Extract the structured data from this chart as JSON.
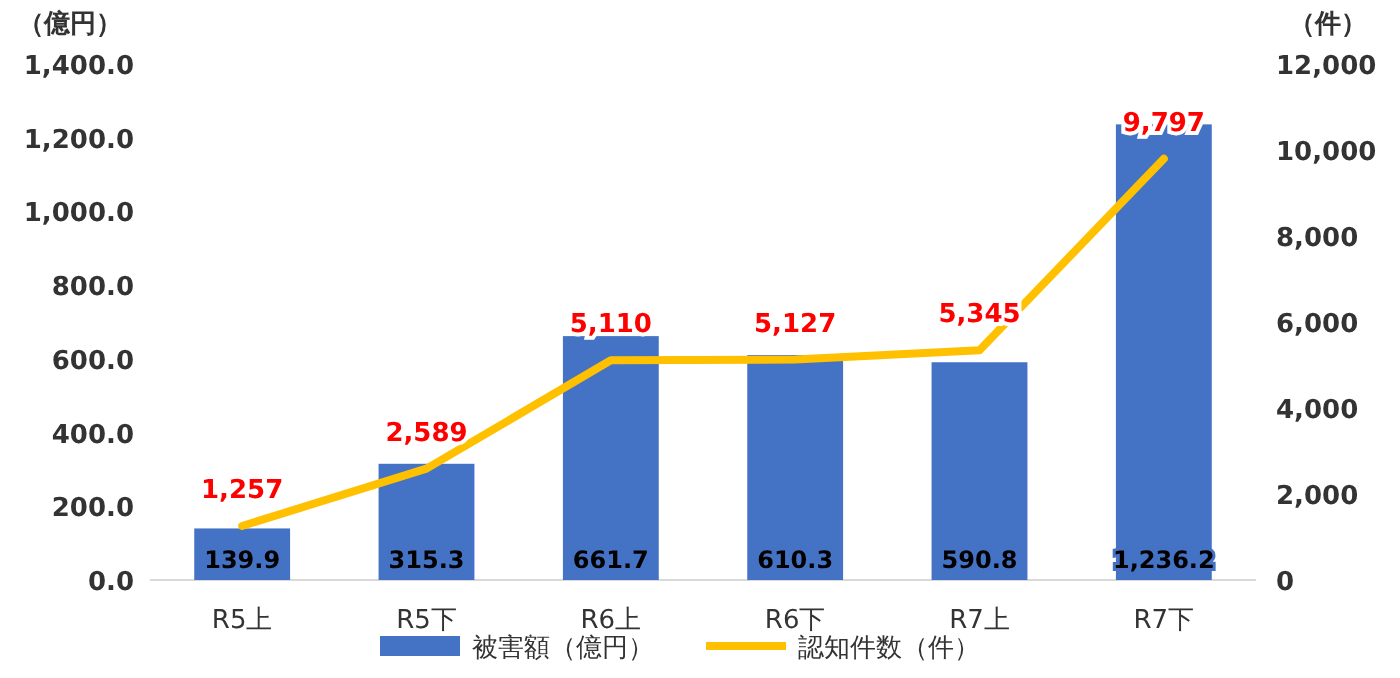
{
  "chart_data": {
    "type": "bar",
    "categories": [
      "R5上",
      "R5下",
      "R6上",
      "R6下",
      "R7上",
      "R7下"
    ],
    "ylabel": "（億円）",
    "y2label": "（件）",
    "ylim": [
      0,
      1400
    ],
    "yticks": [
      {
        "value": 0,
        "label": "0.0"
      },
      {
        "value": 200,
        "label": "200.0"
      },
      {
        "value": 400,
        "label": "400.0"
      },
      {
        "value": 600,
        "label": "600.0"
      },
      {
        "value": 800,
        "label": "800.0"
      },
      {
        "value": 1000,
        "label": "1,000.0"
      },
      {
        "value": 1200,
        "label": "1,200.0"
      },
      {
        "value": 1400,
        "label": "1,400.0"
      }
    ],
    "y2lim": [
      0,
      12000
    ],
    "y2ticks": [
      0,
      {
        "value": 2000,
        "label": "2,000"
      },
      {
        "value": 4000,
        "label": "4,000"
      },
      {
        "value": 6000,
        "label": "6,000"
      },
      {
        "value": 8000,
        "label": "8,000"
      },
      {
        "value": 10000,
        "label": "10,000"
      },
      {
        "value": 12000,
        "label": "12,000"
      }
    ],
    "legend": "bottom",
    "series": [
      {
        "name": "被害額（億円）",
        "color": "#4472c4",
        "values": [
          139.9,
          315.3,
          661.7,
          610.3,
          590.8,
          1236.2
        ],
        "value_labels": [
          "139.9",
          "315.3",
          "661.7",
          "610.3",
          "590.8",
          "1,236.2"
        ]
      },
      {
        "name": "認知件数（件）",
        "type": "line",
        "axis": "y2",
        "color": "#ffc000",
        "values": [
          1257,
          2589,
          5110,
          5127,
          5345,
          9797
        ],
        "value_labels": [
          "1,257",
          "2,589",
          "5,110",
          "5,127",
          "5,345",
          "9,797"
        ]
      }
    ]
  }
}
